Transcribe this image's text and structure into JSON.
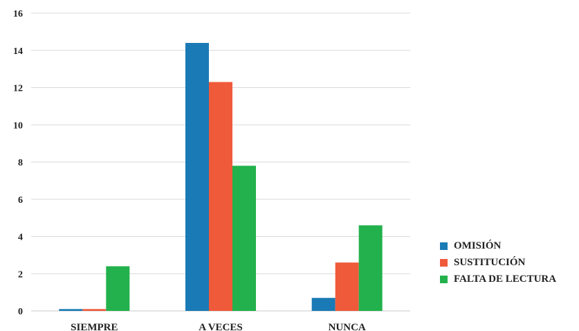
{
  "chart_data": {
    "type": "bar",
    "categories": [
      "SIEMPRE",
      "A VECES",
      "NUNCA"
    ],
    "series": [
      {
        "name": "OMISIÓN",
        "color": "#1a7ab5",
        "values": [
          0.1,
          14.4,
          0.7
        ]
      },
      {
        "name": "SUSTITUCIÓN",
        "color": "#ef5a3a",
        "values": [
          0.1,
          12.3,
          2.6
        ]
      },
      {
        "name": "FALTA DE LECTURA",
        "color": "#22b14c",
        "values": [
          2.4,
          7.8,
          4.6
        ]
      }
    ],
    "y_ticks": [
      "0",
      "2",
      "4",
      "6",
      "8",
      "10",
      "12",
      "14",
      "16"
    ],
    "ylim": [
      0,
      16
    ],
    "grid": true,
    "legend_position": "right",
    "title": "",
    "xlabel": "",
    "ylabel": ""
  }
}
